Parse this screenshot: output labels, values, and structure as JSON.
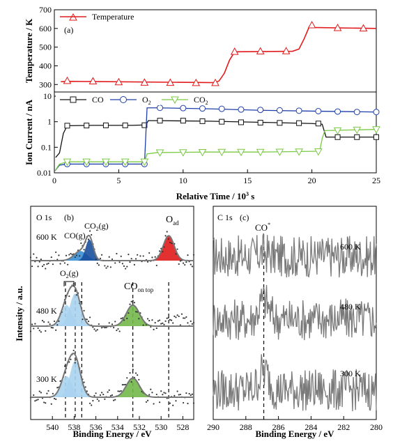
{
  "chart_data": [
    {
      "id": "a",
      "type": "line",
      "panel_label": "(a)",
      "ylabel": "Temperature / K",
      "ylim": [
        260,
        700
      ],
      "yticks": [
        300,
        400,
        500,
        600,
        700
      ],
      "xlim": [
        0,
        25
      ],
      "legend": [
        "Temperature"
      ],
      "legend_position": "top-left",
      "series": [
        {
          "name": "Temperature",
          "color": "#e31a1c",
          "marker": "triangle",
          "x": [
            0.5,
            1.0,
            12.5,
            12.8,
            13.2,
            13.6,
            14.0,
            18.5,
            19.0,
            19.4,
            19.8,
            20.0,
            25.0
          ],
          "y": [
            315,
            317,
            310,
            320,
            360,
            430,
            475,
            478,
            490,
            545,
            610,
            605,
            600
          ],
          "marker_x": [
            1,
            3,
            5,
            7,
            9,
            11,
            12.5,
            14,
            16,
            18,
            20,
            22,
            24
          ],
          "marker_y": [
            320,
            318,
            313,
            311,
            310,
            309,
            309,
            476,
            478,
            479,
            618,
            603,
            601
          ]
        }
      ]
    },
    {
      "id": "a2",
      "type": "line",
      "xlabel": "Relative Time / 10³ s",
      "ylabel": "Ion Current / nA",
      "yscale": "log",
      "ylim": [
        0.01,
        10
      ],
      "yticks": [
        0.01,
        0.1,
        1,
        10
      ],
      "ytick_labels": [
        "0.01",
        "0.1",
        "1",
        "10"
      ],
      "xlim": [
        0,
        25
      ],
      "xticks": [
        0,
        5,
        10,
        15,
        20,
        25
      ],
      "legend": [
        "CO",
        "O2",
        "CO2"
      ],
      "legend_position": "top",
      "series": [
        {
          "name": "CO",
          "color": "#111111",
          "marker": "square",
          "x": [
            0.1,
            0.4,
            0.7,
            1.0,
            3,
            6,
            7.1,
            7.3,
            8,
            12,
            16,
            20,
            20.8,
            21.1,
            25
          ],
          "y": [
            0.04,
            0.06,
            0.35,
            0.7,
            0.72,
            0.72,
            0.75,
            1.1,
            1.1,
            1.05,
            0.95,
            0.85,
            0.8,
            0.25,
            0.25
          ],
          "marker_x": [
            1,
            2.5,
            4,
            5.5,
            7,
            8.2,
            10,
            11.5,
            13,
            14.5,
            16,
            17.5,
            19,
            20.5,
            22,
            23.5,
            25
          ],
          "marker_y": [
            0.7,
            0.71,
            0.72,
            0.72,
            0.73,
            1.1,
            1.1,
            1.05,
            1.0,
            0.95,
            0.92,
            0.9,
            0.88,
            0.85,
            0.25,
            0.25,
            0.25
          ]
        },
        {
          "name": "O2",
          "color": "#1f3fa8",
          "marker": "circle",
          "x": [
            0.05,
            0.4,
            1.0,
            7.0,
            7.2,
            8,
            12,
            16,
            20,
            25
          ],
          "y": [
            0.012,
            0.02,
            0.022,
            0.022,
            3.5,
            3.5,
            3.2,
            2.8,
            2.6,
            2.4
          ],
          "marker_x": [
            1,
            2.5,
            4,
            5.5,
            7,
            8.2,
            10,
            11.5,
            13,
            14.5,
            16,
            17.5,
            19,
            20.5,
            22,
            23.5,
            25
          ],
          "marker_y": [
            0.022,
            0.022,
            0.022,
            0.022,
            0.022,
            3.5,
            3.4,
            3.3,
            3.2,
            3.0,
            2.9,
            2.8,
            2.7,
            2.6,
            2.5,
            2.4,
            2.4
          ]
        },
        {
          "name": "CO2",
          "color": "#7ac943",
          "marker": "triangle-down",
          "x": [
            0.05,
            0.4,
            1.0,
            7.0,
            7.2,
            8,
            12,
            16,
            20.6,
            20.8,
            21.0,
            25
          ],
          "y": [
            0.012,
            0.022,
            0.027,
            0.027,
            0.055,
            0.062,
            0.065,
            0.065,
            0.07,
            0.22,
            0.45,
            0.5
          ],
          "marker_x": [
            1,
            2.5,
            4,
            5.5,
            7,
            8.2,
            10,
            11.5,
            13,
            14.5,
            16,
            17.5,
            19,
            20.5,
            22,
            23.5,
            25
          ],
          "marker_y": [
            0.027,
            0.027,
            0.027,
            0.027,
            0.027,
            0.062,
            0.063,
            0.064,
            0.065,
            0.065,
            0.065,
            0.066,
            0.067,
            0.068,
            0.45,
            0.48,
            0.5
          ]
        }
      ]
    },
    {
      "id": "b",
      "type": "line",
      "panel_label": "(b)",
      "core_level": "O 1s",
      "xlabel": "Binding Energy / eV",
      "ylabel": "Intensity / a.u.",
      "xlim": [
        542,
        527
      ],
      "xticks": [
        540,
        538,
        536,
        534,
        532,
        530,
        528
      ],
      "temperatures": [
        "600 K",
        "480 K",
        "300 K"
      ],
      "annotations": {
        "co_gas": "CO(g)",
        "co2_gas": "CO",
        "co2_gas_sub": "2",
        "co2_gas_suffix": "(g)",
        "o2_gas": "O",
        "o2_gas_sub": "2",
        "o2_gas_suffix": "(g)",
        "o_ad": "O",
        "o_ad_sub": "ad",
        "co_on_top": "CO",
        "co_on_top_sub": "on top"
      },
      "peaks": [
        {
          "temperature": "600 K",
          "center": 537.4,
          "height": 0.25,
          "width": 0.6,
          "color": "#3a8fd6"
        },
        {
          "temperature": "600 K",
          "center": 536.6,
          "height": 0.55,
          "width": 0.35,
          "color": "#1a4f9c"
        },
        {
          "temperature": "600 K",
          "center": 529.3,
          "height": 0.65,
          "width": 0.5,
          "color": "#e01a1a"
        },
        {
          "temperature": "480 K",
          "center": 538.7,
          "height": 0.55,
          "width": 0.5,
          "color": "#a9d3ef"
        },
        {
          "temperature": "480 K",
          "center": 537.9,
          "height": 0.85,
          "width": 0.5,
          "color": "#a9d3ef"
        },
        {
          "temperature": "480 K",
          "center": 532.6,
          "height": 0.55,
          "width": 0.6,
          "color": "#72b84a"
        },
        {
          "temperature": "300 K",
          "center": 538.7,
          "height": 0.55,
          "width": 0.5,
          "color": "#a9d3ef"
        },
        {
          "temperature": "300 K",
          "center": 537.9,
          "height": 0.95,
          "width": 0.5,
          "color": "#a9d3ef"
        },
        {
          "temperature": "300 K",
          "center": 532.6,
          "height": 0.5,
          "width": 0.6,
          "color": "#72b84a"
        }
      ],
      "dashed_lines_ev": [
        538.8,
        537.9,
        537.3,
        532.6,
        529.3
      ]
    },
    {
      "id": "c",
      "type": "line",
      "panel_label": "(c)",
      "core_level": "C 1s",
      "xlabel": "Binding Energy / eV",
      "xlim": [
        290,
        280
      ],
      "xticks": [
        290,
        288,
        286,
        284,
        282,
        280
      ],
      "temperatures": [
        "600 K",
        "480 K",
        "300 K"
      ],
      "annotation": "CO",
      "annotation_sup": "*",
      "dashed_line_ev": 286.9,
      "peaks": [
        {
          "temperature": "600 K",
          "center": 286.9,
          "height": 0.1
        },
        {
          "temperature": "480 K",
          "center": 286.9,
          "height": 0.5
        },
        {
          "temperature": "300 K",
          "center": 286.9,
          "height": 0.5
        }
      ]
    }
  ]
}
